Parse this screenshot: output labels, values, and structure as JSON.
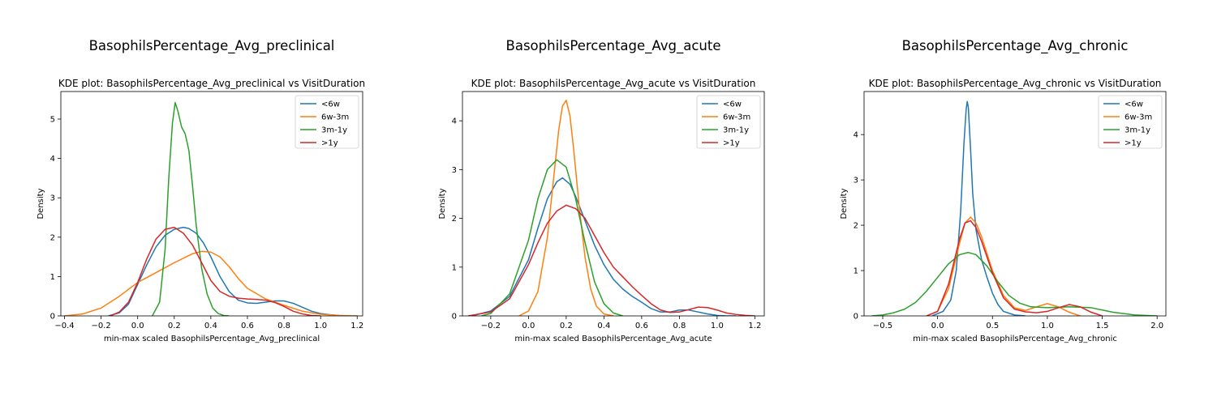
{
  "chart_data": [
    {
      "type": "line",
      "suptitle": "BasophilsPercentage_Avg_preclinical",
      "title": "KDE plot:  BasophilsPercentage_Avg_preclinical vs VisitDuration",
      "xlabel": "min-max scaled BasophilsPercentage_Avg_preclinical",
      "ylabel": "Density",
      "xlim": [
        -0.42,
        1.23
      ],
      "ylim": [
        0,
        5.7
      ],
      "xticks": [
        -0.4,
        -0.2,
        0.0,
        0.2,
        0.4,
        0.6,
        0.8,
        1.0,
        1.2
      ],
      "xticklabels": [
        "−0.4",
        "−0.2",
        "0.0",
        "0.2",
        "0.4",
        "0.6",
        "0.8",
        "1.0",
        "1.2"
      ],
      "yticks": [
        0,
        1,
        2,
        3,
        4,
        5
      ],
      "yticklabels": [
        "0",
        "1",
        "2",
        "3",
        "4",
        "5"
      ],
      "legend_position": "top-right",
      "series": [
        {
          "name": "<6w",
          "color": "#1f77b4",
          "x": [
            -0.16,
            -0.1,
            -0.05,
            0.0,
            0.05,
            0.1,
            0.15,
            0.2,
            0.25,
            0.28,
            0.32,
            0.36,
            0.4,
            0.45,
            0.5,
            0.55,
            0.6,
            0.65,
            0.7,
            0.75,
            0.8,
            0.85,
            0.9,
            0.95,
            1.0,
            1.05,
            1.1,
            1.15,
            1.2
          ],
          "y": [
            0.0,
            0.08,
            0.3,
            0.8,
            1.3,
            1.75,
            2.05,
            2.2,
            2.25,
            2.22,
            2.1,
            1.85,
            1.5,
            1.0,
            0.62,
            0.4,
            0.33,
            0.32,
            0.35,
            0.38,
            0.38,
            0.32,
            0.22,
            0.12,
            0.06,
            0.03,
            0.01,
            0.0,
            0.0
          ]
        },
        {
          "name": "6w-3m",
          "color": "#ff7f0e",
          "x": [
            -0.4,
            -0.3,
            -0.2,
            -0.1,
            0.0,
            0.1,
            0.2,
            0.3,
            0.35,
            0.4,
            0.45,
            0.5,
            0.55,
            0.6,
            0.7,
            0.8,
            0.9,
            1.0,
            1.1,
            1.2
          ],
          "y": [
            0.0,
            0.05,
            0.2,
            0.5,
            0.85,
            1.1,
            1.35,
            1.58,
            1.64,
            1.62,
            1.5,
            1.25,
            0.95,
            0.7,
            0.43,
            0.27,
            0.12,
            0.04,
            0.01,
            0.0
          ]
        },
        {
          "name": "3m-1y",
          "color": "#2ca02c",
          "x": [
            0.08,
            0.12,
            0.15,
            0.17,
            0.19,
            0.205,
            0.22,
            0.24,
            0.26,
            0.28,
            0.3,
            0.32,
            0.35,
            0.38,
            0.41,
            0.44,
            0.47,
            0.5
          ],
          "y": [
            0.0,
            0.35,
            1.7,
            3.5,
            4.9,
            5.42,
            5.2,
            4.8,
            4.62,
            4.2,
            3.3,
            2.3,
            1.2,
            0.55,
            0.2,
            0.06,
            0.01,
            0.0
          ]
        },
        {
          "name": ">1y",
          "color": "#d62728",
          "x": [
            -0.15,
            -0.1,
            -0.05,
            0.0,
            0.05,
            0.1,
            0.15,
            0.2,
            0.25,
            0.3,
            0.35,
            0.4,
            0.45,
            0.5,
            0.55,
            0.6,
            0.65,
            0.7,
            0.75,
            0.8,
            0.85,
            0.9,
            0.95,
            1.0
          ],
          "y": [
            0.0,
            0.1,
            0.35,
            0.85,
            1.45,
            1.95,
            2.2,
            2.25,
            2.1,
            1.8,
            1.35,
            0.9,
            0.62,
            0.5,
            0.45,
            0.43,
            0.42,
            0.4,
            0.34,
            0.24,
            0.12,
            0.05,
            0.01,
            0.0
          ]
        }
      ]
    },
    {
      "type": "line",
      "suptitle": "BasophilsPercentage_Avg_acute",
      "title": "KDE plot:  BasophilsPercentage_Avg_acute vs VisitDuration",
      "xlabel": "min-max scaled BasophilsPercentage_Avg_acute",
      "ylabel": "Density",
      "xlim": [
        -0.35,
        1.25
      ],
      "ylim": [
        0,
        4.6
      ],
      "xticks": [
        -0.2,
        0.0,
        0.2,
        0.4,
        0.6,
        0.8,
        1.0,
        1.2
      ],
      "xticklabels": [
        "−0.2",
        "0.0",
        "0.2",
        "0.4",
        "0.6",
        "0.8",
        "1.0",
        "1.2"
      ],
      "yticks": [
        0,
        1,
        2,
        3,
        4
      ],
      "yticklabels": [
        "0",
        "1",
        "2",
        "3",
        "4"
      ],
      "legend_position": "top-right",
      "series": [
        {
          "name": "<6w",
          "color": "#1f77b4",
          "x": [
            -0.3,
            -0.2,
            -0.1,
            0.0,
            0.05,
            0.1,
            0.15,
            0.18,
            0.22,
            0.25,
            0.3,
            0.35,
            0.4,
            0.45,
            0.5,
            0.55,
            0.6,
            0.65,
            0.7,
            0.75,
            0.8,
            0.85,
            0.9,
            0.95,
            1.0,
            1.05,
            1.1
          ],
          "y": [
            0.0,
            0.1,
            0.4,
            1.15,
            1.8,
            2.4,
            2.75,
            2.83,
            2.7,
            2.45,
            1.95,
            1.45,
            1.05,
            0.75,
            0.55,
            0.4,
            0.28,
            0.15,
            0.08,
            0.08,
            0.12,
            0.12,
            0.08,
            0.04,
            0.01,
            0.0,
            0.0
          ]
        },
        {
          "name": "6w-3m",
          "color": "#ff7f0e",
          "x": [
            -0.05,
            0.0,
            0.05,
            0.1,
            0.13,
            0.16,
            0.18,
            0.2,
            0.22,
            0.24,
            0.27,
            0.3,
            0.33,
            0.36,
            0.4,
            0.45
          ],
          "y": [
            0.0,
            0.1,
            0.5,
            1.6,
            2.7,
            3.8,
            4.3,
            4.42,
            4.1,
            3.4,
            2.2,
            1.2,
            0.55,
            0.2,
            0.04,
            0.0
          ]
        },
        {
          "name": "3m-1y",
          "color": "#2ca02c",
          "x": [
            -0.25,
            -0.2,
            -0.1,
            0.0,
            0.05,
            0.1,
            0.15,
            0.2,
            0.25,
            0.3,
            0.35,
            0.4,
            0.45,
            0.5
          ],
          "y": [
            0.0,
            0.05,
            0.45,
            1.55,
            2.4,
            3.0,
            3.2,
            3.05,
            2.4,
            1.5,
            0.7,
            0.25,
            0.06,
            0.0
          ]
        },
        {
          "name": ">1y",
          "color": "#d62728",
          "x": [
            -0.32,
            -0.2,
            -0.1,
            0.0,
            0.05,
            0.1,
            0.15,
            0.2,
            0.25,
            0.3,
            0.35,
            0.4,
            0.45,
            0.5,
            0.55,
            0.6,
            0.65,
            0.7,
            0.75,
            0.8,
            0.85,
            0.9,
            0.95,
            1.0,
            1.05,
            1.1,
            1.15,
            1.2
          ],
          "y": [
            0.0,
            0.08,
            0.35,
            1.05,
            1.5,
            1.9,
            2.15,
            2.27,
            2.2,
            2.0,
            1.65,
            1.3,
            1.0,
            0.8,
            0.6,
            0.42,
            0.25,
            0.12,
            0.07,
            0.08,
            0.13,
            0.18,
            0.17,
            0.12,
            0.06,
            0.03,
            0.01,
            0.0
          ]
        }
      ]
    },
    {
      "type": "line",
      "suptitle": "BasophilsPercentage_Avg_chronic",
      "title": "KDE plot:  BasophilsPercentage_Avg_chronic vs VisitDuration",
      "xlabel": "min-max scaled BasophilsPercentage_Avg_chronic",
      "ylabel": "Density",
      "xlim": [
        -0.67,
        2.08
      ],
      "ylim": [
        0,
        4.95
      ],
      "xticks": [
        -0.5,
        0.0,
        0.5,
        1.0,
        1.5,
        2.0
      ],
      "xticklabels": [
        "−0.5",
        "0.0",
        "0.5",
        "1.0",
        "1.5",
        "2.0"
      ],
      "yticks": [
        0,
        1,
        2,
        3,
        4
      ],
      "yticklabels": [
        "0",
        "1",
        "2",
        "3",
        "4"
      ],
      "legend_position": "top-right",
      "series": [
        {
          "name": "<6w",
          "color": "#1f77b4",
          "x": [
            -0.05,
            0.05,
            0.12,
            0.17,
            0.21,
            0.24,
            0.26,
            0.27,
            0.28,
            0.3,
            0.32,
            0.35,
            0.4,
            0.45,
            0.5,
            0.55,
            0.6,
            0.7,
            0.8
          ],
          "y": [
            0.0,
            0.1,
            0.35,
            1.0,
            2.3,
            3.8,
            4.55,
            4.73,
            4.6,
            3.7,
            2.7,
            1.9,
            1.25,
            0.85,
            0.5,
            0.25,
            0.1,
            0.02,
            0.0
          ]
        },
        {
          "name": "6w-3m",
          "color": "#ff7f0e",
          "x": [
            -0.1,
            0.0,
            0.1,
            0.2,
            0.25,
            0.3,
            0.35,
            0.4,
            0.5,
            0.6,
            0.7,
            0.8,
            0.9,
            1.0,
            1.1,
            1.2,
            1.3
          ],
          "y": [
            0.0,
            0.1,
            0.6,
            1.6,
            2.05,
            2.18,
            2.05,
            1.75,
            1.0,
            0.45,
            0.18,
            0.12,
            0.2,
            0.27,
            0.2,
            0.08,
            0.0
          ]
        },
        {
          "name": "3m-1y",
          "color": "#2ca02c",
          "x": [
            -0.6,
            -0.5,
            -0.4,
            -0.3,
            -0.2,
            -0.1,
            0.0,
            0.1,
            0.2,
            0.28,
            0.35,
            0.45,
            0.55,
            0.65,
            0.75,
            0.85,
            1.0,
            1.2,
            1.4,
            1.6,
            1.8,
            2.0
          ],
          "y": [
            0.0,
            0.02,
            0.07,
            0.15,
            0.3,
            0.55,
            0.85,
            1.15,
            1.35,
            1.4,
            1.35,
            1.1,
            0.75,
            0.45,
            0.28,
            0.2,
            0.18,
            0.2,
            0.18,
            0.08,
            0.02,
            0.0
          ]
        },
        {
          "name": ">1y",
          "color": "#d62728",
          "x": [
            -0.1,
            0.0,
            0.1,
            0.2,
            0.25,
            0.3,
            0.35,
            0.4,
            0.5,
            0.6,
            0.7,
            0.8,
            0.9,
            1.0,
            1.1,
            1.2,
            1.3,
            1.4,
            1.5
          ],
          "y": [
            0.0,
            0.1,
            0.7,
            1.7,
            2.05,
            2.1,
            1.95,
            1.65,
            0.95,
            0.4,
            0.15,
            0.09,
            0.07,
            0.1,
            0.18,
            0.25,
            0.2,
            0.08,
            0.0
          ]
        }
      ]
    }
  ]
}
